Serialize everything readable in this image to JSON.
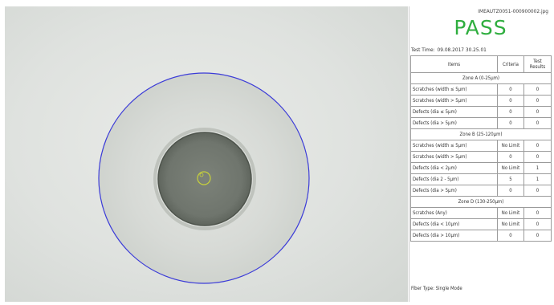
{
  "report": {
    "filename": "IMEAUTZ0051-000900002.jpg",
    "result": "PASS",
    "test_time_label": "Test Time:",
    "test_time_value": "09.08.2017 30.25.01",
    "table": {
      "headers": [
        "Items",
        "Criteria",
        "Test Results"
      ],
      "zone_a": {
        "title": "Zone A (0-25µm)",
        "rows": [
          {
            "item": "Scratches (width ≤ 5µm)",
            "criteria": "0",
            "result": "0"
          },
          {
            "item": "Scratches (width > 5µm)",
            "criteria": "0",
            "result": "0"
          },
          {
            "item": "Defects (dia ≤ 5µm)",
            "criteria": "0",
            "result": "0"
          },
          {
            "item": "Defects (dia > 5µm)",
            "criteria": "0",
            "result": "0"
          }
        ]
      },
      "zone_b": {
        "title": "Zone B (25-120µm)",
        "rows": [
          {
            "item": "Scratches (width ≤ 5µm)",
            "criteria": "No Limit",
            "result": "0"
          },
          {
            "item": "Scratches (width > 5µm)",
            "criteria": "0",
            "result": "0"
          },
          {
            "item": "Defects (dia < 2µm)",
            "criteria": "No Limit",
            "result": "1"
          },
          {
            "item": "Defects (dia 2 - 5µm)",
            "criteria": "5",
            "result": "1"
          },
          {
            "item": "Defects (dia > 5µm)",
            "criteria": "0",
            "result": "0"
          }
        ]
      },
      "zone_d": {
        "title": "Zone D (130-250µm)",
        "rows": [
          {
            "item": "Scratches (Any)",
            "criteria": "No Limit",
            "result": "0"
          },
          {
            "item": "Defects (dia < 10µm)",
            "criteria": "No Limit",
            "result": "0"
          },
          {
            "item": "Defects (dia > 10µm)",
            "criteria": "0",
            "result": "0"
          }
        ]
      }
    },
    "fiber_type": "Fiber Type: Single Mode"
  },
  "colors": {
    "pass": "#2fae3f",
    "zone_circle": "#3b3bd8",
    "core_marker": "#c8d23a"
  }
}
